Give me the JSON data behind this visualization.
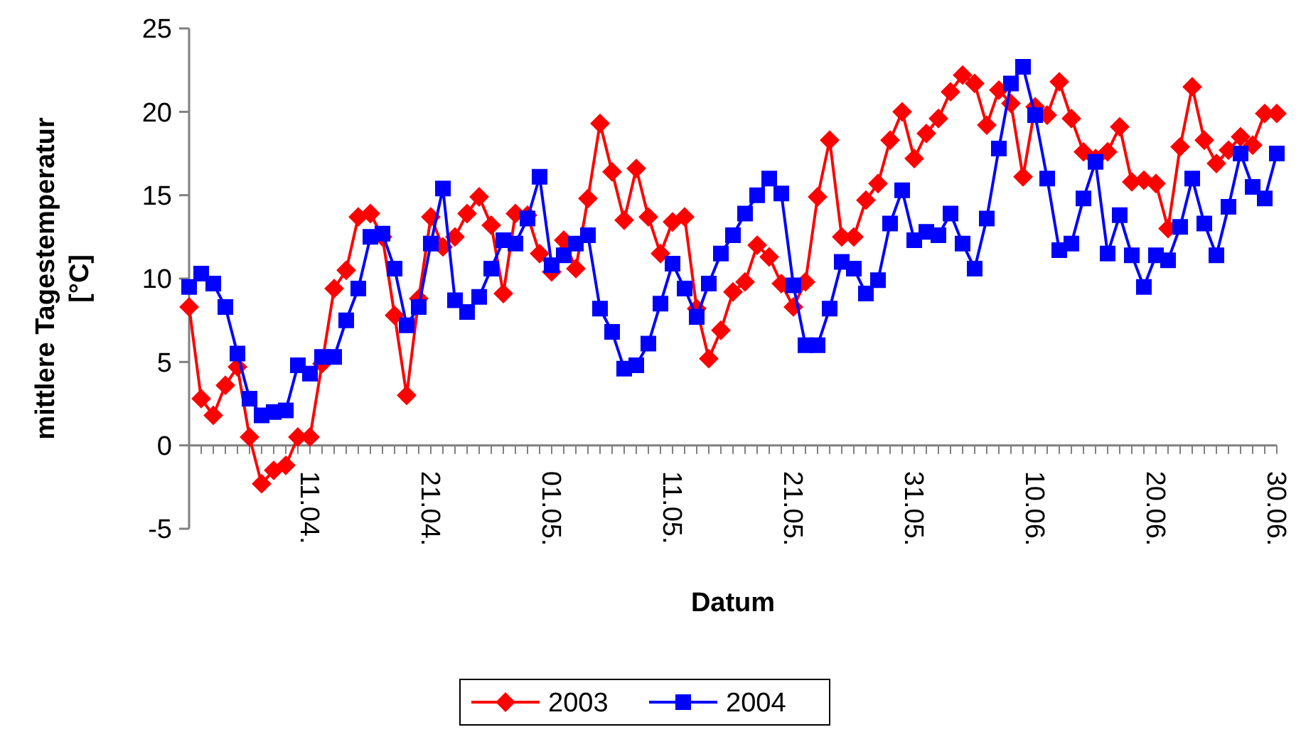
{
  "chart_data": {
    "type": "line",
    "xlabel": "Datum",
    "ylabel": "mittlere Tagestemperatur\n[°C]",
    "categories": [
      null,
      null,
      null,
      null,
      null,
      null,
      null,
      null,
      null,
      null,
      "11.04.",
      null,
      null,
      null,
      null,
      null,
      null,
      null,
      null,
      null,
      "21.04.",
      null,
      null,
      null,
      null,
      null,
      null,
      null,
      null,
      null,
      "01.05.",
      null,
      null,
      null,
      null,
      null,
      null,
      null,
      null,
      null,
      "11.05.",
      null,
      null,
      null,
      null,
      null,
      null,
      null,
      null,
      null,
      "21.05.",
      null,
      null,
      null,
      null,
      null,
      null,
      null,
      null,
      null,
      "31.05.",
      null,
      null,
      null,
      null,
      null,
      null,
      null,
      null,
      null,
      "10.06.",
      null,
      null,
      null,
      null,
      null,
      null,
      null,
      null,
      null,
      "20.06.",
      null,
      null,
      null,
      null,
      null,
      null,
      null,
      null,
      null,
      "30.06."
    ],
    "series": [
      {
        "name": "2003",
        "color": "#ff0000",
        "marker": "diamond",
        "values": [
          8.3,
          2.8,
          1.8,
          3.6,
          4.7,
          0.5,
          -2.3,
          -1.5,
          -1.2,
          0.5,
          0.5,
          4.9,
          9.4,
          10.5,
          13.7,
          13.9,
          12.5,
          7.8,
          3.0,
          8.8,
          13.7,
          11.9,
          12.5,
          13.9,
          14.9,
          13.2,
          9.1,
          13.9,
          13.8,
          11.5,
          10.4,
          12.3,
          10.6,
          14.8,
          19.3,
          16.4,
          13.5,
          16.6,
          13.7,
          11.5,
          13.4,
          13.7,
          8.2,
          5.2,
          6.9,
          9.2,
          9.8,
          12.0,
          11.3,
          9.7,
          8.3,
          9.8,
          14.9,
          18.3,
          12.5,
          12.5,
          14.7,
          15.7,
          18.3,
          20.0,
          17.2,
          18.7,
          19.6,
          21.2,
          22.2,
          21.7,
          19.2,
          21.3,
          20.5,
          16.1,
          20.3,
          19.8,
          21.8,
          19.6,
          17.6,
          17.2,
          17.6,
          19.1,
          15.8,
          15.9,
          15.7,
          13.0,
          17.9,
          21.5,
          18.3,
          16.9,
          17.7,
          18.5,
          18.0,
          19.9,
          19.9
        ]
      },
      {
        "name": "2004",
        "color": "#0000ff",
        "marker": "square",
        "values": [
          9.5,
          10.3,
          9.7,
          8.3,
          5.5,
          2.8,
          1.8,
          2.0,
          2.1,
          4.8,
          4.3,
          5.3,
          5.3,
          7.5,
          9.4,
          12.5,
          12.7,
          10.6,
          7.2,
          8.3,
          12.1,
          15.4,
          8.7,
          8.0,
          8.9,
          10.6,
          12.3,
          12.1,
          13.6,
          16.1,
          10.8,
          11.4,
          12.1,
          12.6,
          8.2,
          6.8,
          4.6,
          4.8,
          6.1,
          8.5,
          10.9,
          9.4,
          7.7,
          9.7,
          11.5,
          12.6,
          13.9,
          15.0,
          16.0,
          15.1,
          9.6,
          6.0,
          6.0,
          8.2,
          11.0,
          10.6,
          9.1,
          9.9,
          13.3,
          15.3,
          12.3,
          12.8,
          12.6,
          13.9,
          12.1,
          10.6,
          13.6,
          17.8,
          21.7,
          22.7,
          19.8,
          16.0,
          11.7,
          12.1,
          14.8,
          17.0,
          11.5,
          13.8,
          11.4,
          9.5,
          11.4,
          11.1,
          13.1,
          16.0,
          13.3,
          11.4,
          14.3,
          17.5,
          15.5,
          14.8,
          17.5
        ]
      }
    ],
    "ylim": [
      -5,
      25
    ],
    "yticks": [
      -5,
      0,
      5,
      10,
      15,
      20,
      25
    ],
    "grid": false,
    "legend": "bottom",
    "line_style": "solid"
  }
}
